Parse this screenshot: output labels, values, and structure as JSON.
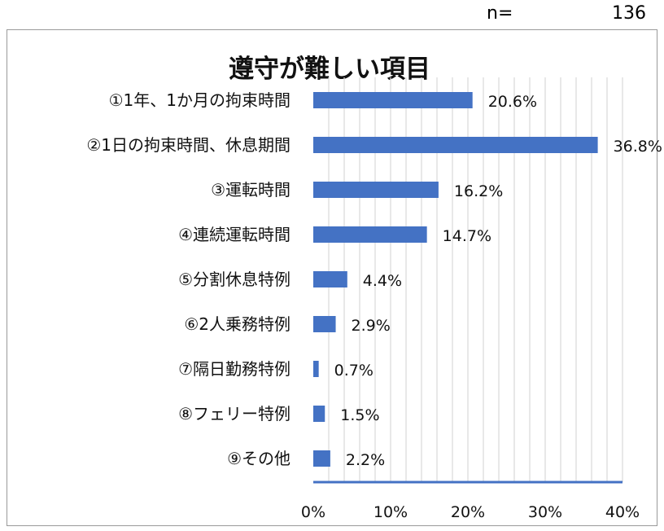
{
  "header": {
    "n_label": "n=",
    "n_value": "136"
  },
  "chart_data": {
    "type": "bar",
    "orientation": "horizontal",
    "title": "遵守が難しい項目",
    "categories": [
      "①1年、1か月の拘束時間",
      "②1日の拘束時間、休息期間",
      "③運転時間",
      "④連続運転時間",
      "⑤分割休息特例",
      "⑥2人乗務特例",
      "⑦隔日勤務特例",
      "⑧フェリー特例",
      "⑨その他"
    ],
    "values": [
      20.6,
      36.8,
      16.2,
      14.7,
      4.4,
      2.9,
      0.7,
      1.5,
      2.2
    ],
    "value_labels": [
      "20.6%",
      "36.8%",
      "16.2%",
      "14.7%",
      "4.4%",
      "2.9%",
      "0.7%",
      "1.5%",
      "2.2%"
    ],
    "xticks": [
      0,
      10,
      20,
      30,
      40
    ],
    "xtick_labels": [
      "0%",
      "10%",
      "20%",
      "30%",
      "40%"
    ],
    "xlim": [
      0,
      40
    ],
    "grid": true,
    "bar_color": "#4472C4",
    "grid_color": "#d9d9d9"
  }
}
